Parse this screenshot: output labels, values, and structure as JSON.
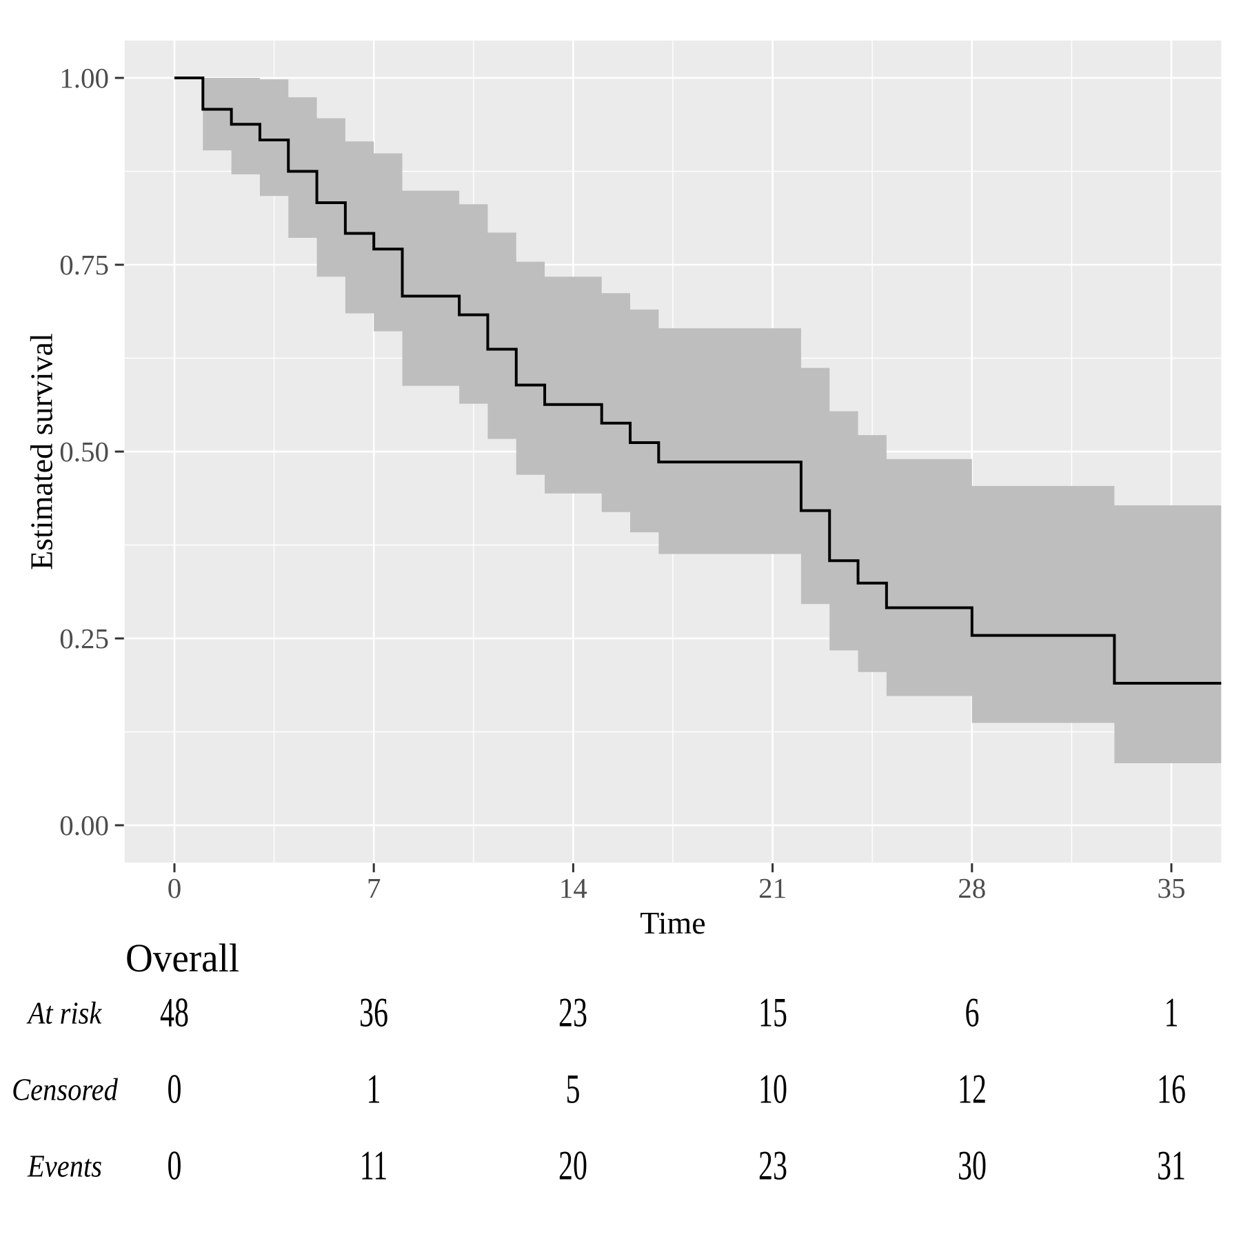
{
  "figure": {
    "background": "#FFFFFF",
    "panel_bg": "#EBEBEB",
    "grid_major_color": "#FFFFFF",
    "grid_minor_color": "#FFFFFF",
    "curve_color": "#000000",
    "ribbon_color": "#BEBEBE",
    "tick_mark_color": "#333333",
    "tick_label_color": "#4D4D4D"
  },
  "chart_data": {
    "type": "line",
    "variant": "kaplan-meier-step-with-confidence-band",
    "title": "",
    "xlabel": "Time",
    "ylabel": "Estimated survival",
    "xlim": [
      -1.75,
      36.75
    ],
    "ylim": [
      -0.05,
      1.05
    ],
    "grid": "on",
    "legend": "none",
    "x_ticks": [
      0,
      7,
      14,
      21,
      28,
      35
    ],
    "x_minor_ticks": [
      3.5,
      10.5,
      17.5,
      24.5,
      31.5
    ],
    "y_ticks": [
      {
        "v": 0.0,
        "label": "0.00"
      },
      {
        "v": 0.25,
        "label": "0.25"
      },
      {
        "v": 0.5,
        "label": "0.50"
      },
      {
        "v": 0.75,
        "label": "0.75"
      },
      {
        "v": 1.0,
        "label": "1.00"
      }
    ],
    "y_minor_ticks": [
      0.125,
      0.375,
      0.625,
      0.875
    ],
    "series": [
      {
        "name": "Overall",
        "curve_end_time": 36.75,
        "steps": [
          {
            "t": 0,
            "s": 1.0,
            "lower": 1.0,
            "upper": 1.0
          },
          {
            "t": 1,
            "s": 0.958,
            "lower": 0.903,
            "upper": 1.0
          },
          {
            "t": 2,
            "s": 0.938,
            "lower": 0.871,
            "upper": 1.0
          },
          {
            "t": 3,
            "s": 0.917,
            "lower": 0.842,
            "upper": 0.998
          },
          {
            "t": 4,
            "s": 0.875,
            "lower": 0.786,
            "upper": 0.974
          },
          {
            "t": 5,
            "s": 0.833,
            "lower": 0.734,
            "upper": 0.946
          },
          {
            "t": 6,
            "s": 0.792,
            "lower": 0.685,
            "upper": 0.915
          },
          {
            "t": 7,
            "s": 0.771,
            "lower": 0.661,
            "upper": 0.899
          },
          {
            "t": 8,
            "s": 0.708,
            "lower": 0.588,
            "upper": 0.849
          },
          {
            "t": 10,
            "s": 0.683,
            "lower": 0.564,
            "upper": 0.831
          },
          {
            "t": 11,
            "s": 0.637,
            "lower": 0.517,
            "upper": 0.793
          },
          {
            "t": 12,
            "s": 0.589,
            "lower": 0.469,
            "upper": 0.754
          },
          {
            "t": 13,
            "s": 0.563,
            "lower": 0.444,
            "upper": 0.734
          },
          {
            "t": 15,
            "s": 0.538,
            "lower": 0.419,
            "upper": 0.712
          },
          {
            "t": 16,
            "s": 0.512,
            "lower": 0.392,
            "upper": 0.69
          },
          {
            "t": 17,
            "s": 0.486,
            "lower": 0.363,
            "upper": 0.665
          },
          {
            "t": 22,
            "s": 0.421,
            "lower": 0.296,
            "upper": 0.612
          },
          {
            "t": 23,
            "s": 0.354,
            "lower": 0.234,
            "upper": 0.554
          },
          {
            "t": 24,
            "s": 0.324,
            "lower": 0.205,
            "upper": 0.522
          },
          {
            "t": 25,
            "s": 0.291,
            "lower": 0.173,
            "upper": 0.49
          },
          {
            "t": 28,
            "s": 0.254,
            "lower": 0.137,
            "upper": 0.454
          },
          {
            "t": 33,
            "s": 0.19,
            "lower": 0.083,
            "upper": 0.428
          }
        ]
      }
    ]
  },
  "risk_table": {
    "title": "Overall",
    "times": [
      0,
      7,
      14,
      21,
      28,
      35
    ],
    "rows": [
      {
        "label": "At risk",
        "values": [
          "48",
          "36",
          "23",
          "15",
          "6",
          "1"
        ]
      },
      {
        "label": "Censored",
        "values": [
          "0",
          "1",
          "5",
          "10",
          "12",
          "16"
        ]
      },
      {
        "label": "Events",
        "values": [
          "0",
          "11",
          "20",
          "23",
          "30",
          "31"
        ]
      }
    ]
  }
}
